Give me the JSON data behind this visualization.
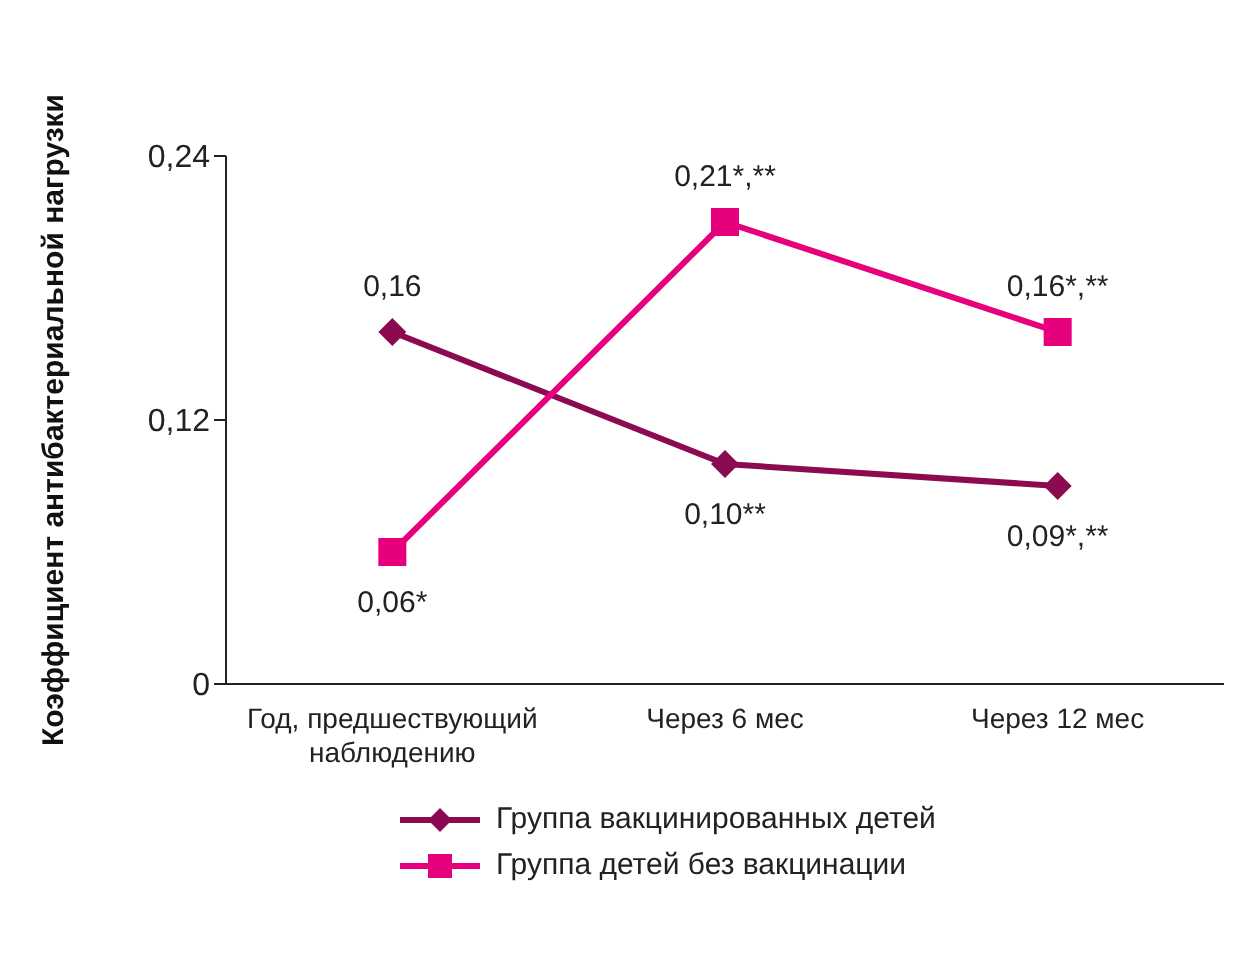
{
  "chart_data": {
    "type": "line",
    "ylabel": "Коэффициент антибактериальной нагрузки",
    "categories": [
      "Год, предшествующий наблюдению",
      "Через 6 мес",
      "Через 12 мес"
    ],
    "series": [
      {
        "name": "Группа вакцинированных детей",
        "color": "#8b0a50",
        "values": [
          0.16,
          0.1,
          0.09
        ],
        "marker": "diamond",
        "value_labels": [
          "0,16",
          "0,10**",
          "0,09*,**"
        ]
      },
      {
        "name": "Группа детей без вакцинации",
        "color": "#e6007e",
        "values": [
          0.06,
          0.21,
          0.16
        ],
        "marker": "square",
        "value_labels": [
          "0,06*",
          "0,21*,**",
          "0,16*,**"
        ]
      }
    ],
    "ylim": [
      0,
      0.24
    ],
    "yticks": [
      {
        "value": 0,
        "label": "0"
      },
      {
        "value": 0.12,
        "label": "0,12"
      },
      {
        "value": 0.24,
        "label": "0,24"
      }
    ],
    "grid": false,
    "legend": "bottom",
    "line_style": "solid"
  }
}
